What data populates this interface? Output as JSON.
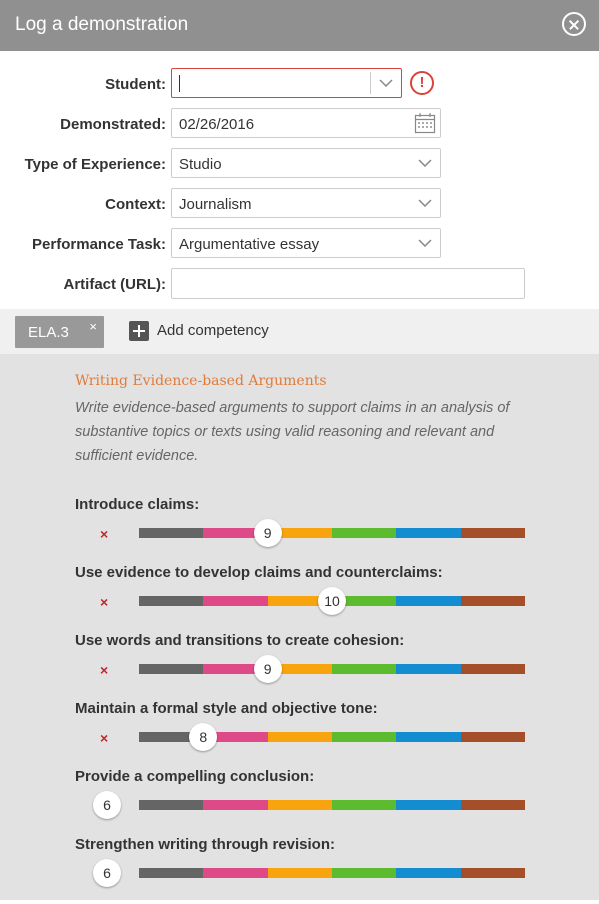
{
  "dialog": {
    "title": "Log a demonstration"
  },
  "form": {
    "student": {
      "label": "Student:",
      "value": ""
    },
    "demonstrated": {
      "label": "Demonstrated:",
      "value": "02/26/2016"
    },
    "experience": {
      "label": "Type of Experience:",
      "value": "Studio"
    },
    "context": {
      "label": "Context:",
      "value": "Journalism"
    },
    "task": {
      "label": "Performance Task:",
      "value": "Argumentative essay"
    },
    "artifact": {
      "label": "Artifact (URL):",
      "value": ""
    }
  },
  "competency_bar": {
    "tag": "ELA.3",
    "tag_remove": "×",
    "add_label": "Add competency"
  },
  "competency": {
    "title": "Writing Evidence-based Arguments",
    "description": "Write evidence-based arguments to support claims in an analysis of substantive topics or texts using valid reasoning and relevant and sufficient evidence."
  },
  "level_colors": [
    "#656565",
    "#de4a87",
    "#f7a40f",
    "#5cbb2e",
    "#148cd0",
    "#a44e2a"
  ],
  "skills": [
    {
      "label": "Introduce claims:",
      "rating": "9",
      "flagged": true,
      "mark": "×"
    },
    {
      "label": "Use evidence to develop claims and counterclaims:",
      "rating": "10",
      "flagged": true,
      "mark": "×"
    },
    {
      "label": "Use words and transitions to create cohesion:",
      "rating": "9",
      "flagged": true,
      "mark": "×"
    },
    {
      "label": "Maintain a formal style and objective tone:",
      "rating": "8",
      "flagged": true,
      "mark": "×"
    },
    {
      "label": "Provide a compelling conclusion:",
      "rating": "6",
      "flagged": false
    },
    {
      "label": "Strengthen writing through revision:",
      "rating": "6",
      "flagged": false
    }
  ]
}
